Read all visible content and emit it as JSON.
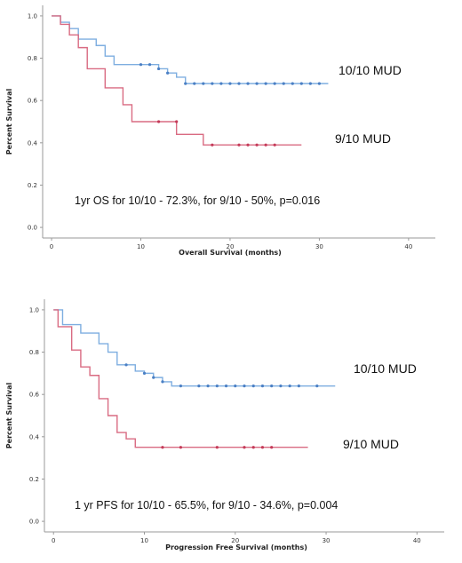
{
  "chart_data": [
    {
      "type": "line",
      "subtype": "kaplan-meier step",
      "xlabel": "Overall Survival (months)",
      "ylabel": "Percent Survival",
      "xlim": [
        -1,
        43
      ],
      "ylim": [
        -0.05,
        1.05
      ],
      "xticks": [
        0,
        10,
        20,
        30,
        40
      ],
      "yticks": [
        0.0,
        0.2,
        0.4,
        0.6,
        0.8,
        1.0
      ],
      "xtick_labels": [
        "0",
        "10",
        "20",
        "30",
        "40"
      ],
      "ytick_labels": [
        "0.0",
        "0.2",
        "0.4",
        "0.6",
        "0.8",
        "1.0"
      ],
      "grid": false,
      "annotation": "1yr OS for 10/10 - 72.3%, for 9/10 - 50%, p=0.016",
      "series": [
        {
          "name": "10/10 MUD",
          "color": "#7eaee0",
          "marker_color": "#4a7fc4",
          "steps": [
            [
              0,
              1.0
            ],
            [
              1,
              0.97
            ],
            [
              2,
              0.94
            ],
            [
              3,
              0.89
            ],
            [
              5,
              0.86
            ],
            [
              6,
              0.81
            ],
            [
              7,
              0.77
            ],
            [
              12,
              0.75
            ],
            [
              13,
              0.73
            ],
            [
              14,
              0.71
            ],
            [
              15,
              0.68
            ],
            [
              31,
              0.68
            ]
          ],
          "censored": [
            [
              10,
              0.77
            ],
            [
              11,
              0.77
            ],
            [
              12,
              0.75
            ],
            [
              13,
              0.73
            ],
            [
              15,
              0.68
            ],
            [
              16,
              0.68
            ],
            [
              17,
              0.68
            ],
            [
              18,
              0.68
            ],
            [
              19,
              0.68
            ],
            [
              20,
              0.68
            ],
            [
              21,
              0.68
            ],
            [
              22,
              0.68
            ],
            [
              23,
              0.68
            ],
            [
              24,
              0.68
            ],
            [
              25,
              0.68
            ],
            [
              26,
              0.68
            ],
            [
              27,
              0.68
            ],
            [
              28,
              0.68
            ],
            [
              29,
              0.68
            ],
            [
              30,
              0.68
            ]
          ]
        },
        {
          "name": "9/10 MUD",
          "color": "#d96b82",
          "marker_color": "#c43a58",
          "steps": [
            [
              0,
              1.0
            ],
            [
              1,
              0.96
            ],
            [
              2,
              0.91
            ],
            [
              3,
              0.85
            ],
            [
              4,
              0.75
            ],
            [
              6,
              0.66
            ],
            [
              8,
              0.58
            ],
            [
              9,
              0.5
            ],
            [
              14,
              0.44
            ],
            [
              15,
              0.44
            ],
            [
              17,
              0.39
            ],
            [
              28,
              0.39
            ]
          ],
          "censored": [
            [
              12,
              0.5
            ],
            [
              14,
              0.5
            ],
            [
              18,
              0.39
            ],
            [
              21,
              0.39
            ],
            [
              22,
              0.39
            ],
            [
              23,
              0.39
            ],
            [
              24,
              0.39
            ],
            [
              25,
              0.39
            ]
          ]
        }
      ]
    },
    {
      "type": "line",
      "subtype": "kaplan-meier step",
      "xlabel": "Progression Free Survival (months)",
      "ylabel": "Percent Survival",
      "xlim": [
        -1,
        43
      ],
      "ylim": [
        -0.05,
        1.05
      ],
      "xticks": [
        0,
        10,
        20,
        30,
        40
      ],
      "yticks": [
        0.0,
        0.2,
        0.4,
        0.6,
        0.8,
        1.0
      ],
      "xtick_labels": [
        "0",
        "10",
        "20",
        "30",
        "40"
      ],
      "ytick_labels": [
        "0.0",
        "0.2",
        "0.4",
        "0.6",
        "0.8",
        "1.0"
      ],
      "grid": false,
      "annotation": "1 yr PFS for 10/10 - 65.5%, for 9/10 - 34.6%, p=0.004",
      "series": [
        {
          "name": "10/10 MUD",
          "color": "#7eaee0",
          "marker_color": "#4a7fc4",
          "steps": [
            [
              0,
              1.0
            ],
            [
              1,
              0.93
            ],
            [
              3,
              0.89
            ],
            [
              5,
              0.84
            ],
            [
              6,
              0.8
            ],
            [
              7,
              0.74
            ],
            [
              9,
              0.71
            ],
            [
              10,
              0.7
            ],
            [
              11,
              0.68
            ],
            [
              12,
              0.66
            ],
            [
              13,
              0.64
            ],
            [
              31,
              0.64
            ]
          ],
          "censored": [
            [
              8,
              0.74
            ],
            [
              10,
              0.7
            ],
            [
              11,
              0.68
            ],
            [
              12,
              0.66
            ],
            [
              14,
              0.64
            ],
            [
              16,
              0.64
            ],
            [
              17,
              0.64
            ],
            [
              18,
              0.64
            ],
            [
              19,
              0.64
            ],
            [
              20,
              0.64
            ],
            [
              21,
              0.64
            ],
            [
              22,
              0.64
            ],
            [
              23,
              0.64
            ],
            [
              24,
              0.64
            ],
            [
              25,
              0.64
            ],
            [
              26,
              0.64
            ],
            [
              27,
              0.64
            ],
            [
              29,
              0.64
            ]
          ]
        },
        {
          "name": "9/10 MUD",
          "color": "#d96b82",
          "marker_color": "#c43a58",
          "steps": [
            [
              0,
              1.0
            ],
            [
              0.5,
              0.92
            ],
            [
              2,
              0.81
            ],
            [
              3,
              0.73
            ],
            [
              4,
              0.69
            ],
            [
              5,
              0.58
            ],
            [
              6,
              0.5
            ],
            [
              7,
              0.42
            ],
            [
              8,
              0.39
            ],
            [
              9,
              0.35
            ],
            [
              28,
              0.35
            ]
          ],
          "censored": [
            [
              12,
              0.35
            ],
            [
              14,
              0.35
            ],
            [
              18,
              0.35
            ],
            [
              21,
              0.35
            ],
            [
              22,
              0.35
            ],
            [
              23,
              0.35
            ],
            [
              24,
              0.35
            ]
          ]
        }
      ]
    }
  ]
}
